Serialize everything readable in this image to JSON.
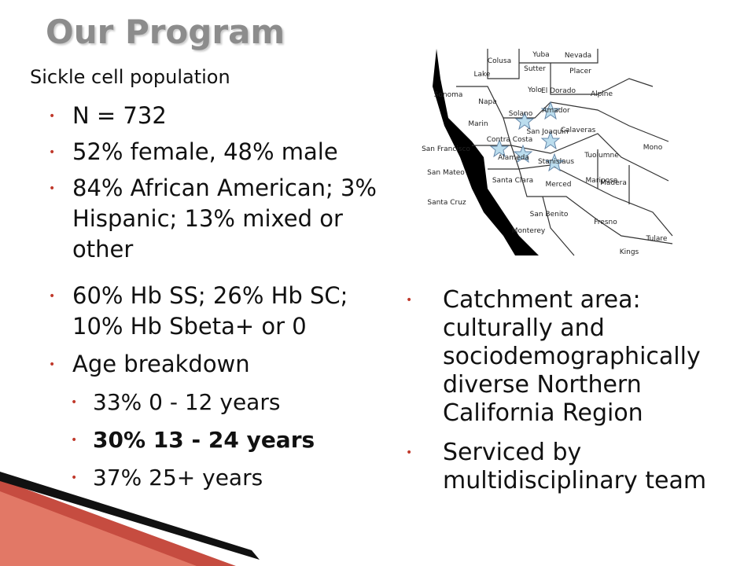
{
  "header": {
    "title": "Our Program"
  },
  "left_list": {
    "heading": "Sickle cell population",
    "items": [
      "N = 732",
      "52% female, 48% male",
      "84% African American; 3% Hispanic; 13% mixed or other",
      "60% Hb SS; 26% Hb SC; 10% Hb Sbeta+ or 0",
      "Age breakdown"
    ],
    "sub_items": [
      "33% 0 - 12 years",
      "30% 13 - 24 years",
      "37% 25+ years"
    ]
  },
  "right_list": {
    "items": [
      "Catchment area: culturally and sociodemographically diverse Northern California Region",
      "Serviced by multidisciplinary team"
    ]
  },
  "map": {
    "labels": [
      "Colusa",
      "Yuba",
      "Nevada",
      "Lake",
      "Sutter",
      "Placer",
      "Yolo",
      "El Dorado",
      "Sonoma",
      "Napa",
      "Solano",
      "Amador",
      "Alpine",
      "Marin",
      "San Joaquin",
      "San Francisco",
      "Contra Costa",
      "Calaveras",
      "Tuolumne",
      "Mono",
      "San Mateo",
      "Alameda",
      "Stanislaus",
      "Mariposa",
      "Santa Clara",
      "Merced",
      "Madera",
      "Santa Cruz",
      "San Benito",
      "Fresno",
      "Tulare",
      "Monterey",
      "Kings"
    ]
  }
}
